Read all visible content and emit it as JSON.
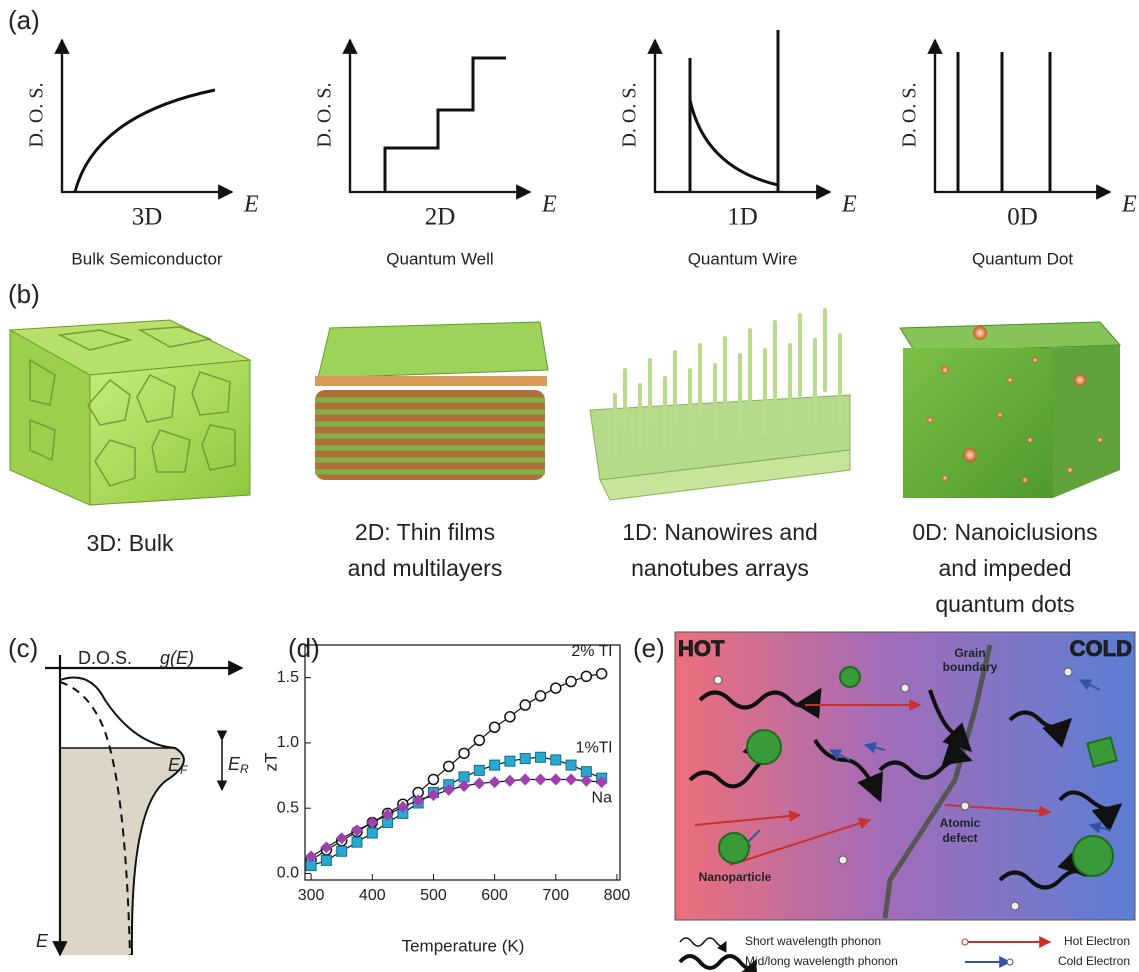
{
  "panel_a": {
    "label": "(a)",
    "plots": [
      {
        "y_label": "D. O. S.",
        "x_label": "E",
        "dimension": "3D",
        "caption": "Bulk Semiconductor"
      },
      {
        "y_label": "D. O. S.",
        "x_label": "E",
        "dimension": "2D",
        "caption": "Quantum Well"
      },
      {
        "y_label": "D. O. S.",
        "x_label": "E",
        "dimension": "1D",
        "caption": "Quantum Wire"
      },
      {
        "y_label": "D. O. S.",
        "x_label": "E",
        "dimension": "0D",
        "caption": "Quantum Dot"
      }
    ]
  },
  "panel_b": {
    "label": "(b)",
    "captions": [
      [
        "3D: Bulk"
      ],
      [
        "2D: Thin films",
        "and multilayers"
      ],
      [
        "1D: Nanowires and",
        "nanotubes arrays"
      ],
      [
        "0D: Nanoiclusions",
        "and impeded",
        "quantum dots"
      ]
    ]
  },
  "panel_c": {
    "label": "(c)",
    "axis_label": "D.O.S.",
    "function": "g(E)",
    "fermi": {
      "symbol": "E",
      "subscript": "F"
    },
    "range": {
      "symbol": "E",
      "subscript": "R"
    },
    "energy": "E"
  },
  "chart_data": {
    "type": "line",
    "label": "(d)",
    "x_label": "Temperature (K)",
    "y_label": "zT",
    "x": [
      300,
      325,
      350,
      375,
      400,
      425,
      450,
      475,
      500,
      525,
      550,
      575,
      600,
      625,
      650,
      675,
      700,
      725,
      750,
      775
    ],
    "series": [
      {
        "name": "2% Tl",
        "color": "#111111",
        "marker": "circle",
        "values": [
          0.1,
          0.18,
          0.25,
          0.32,
          0.39,
          0.46,
          0.53,
          0.62,
          0.72,
          0.82,
          0.92,
          1.02,
          1.12,
          1.2,
          1.29,
          1.36,
          1.42,
          1.47,
          1.51,
          1.53
        ]
      },
      {
        "name": "1%Tl",
        "color": "#2aa8cf",
        "marker": "square",
        "values": [
          0.06,
          0.1,
          0.17,
          0.24,
          0.31,
          0.39,
          0.46,
          0.54,
          0.62,
          0.68,
          0.74,
          0.79,
          0.83,
          0.86,
          0.88,
          0.89,
          0.87,
          0.83,
          0.78,
          0.73
        ]
      },
      {
        "name": "Na",
        "color": "#a040b0",
        "marker": "diamond",
        "values": [
          0.13,
          0.2,
          0.27,
          0.33,
          0.39,
          0.45,
          0.51,
          0.56,
          0.6,
          0.64,
          0.67,
          0.69,
          0.7,
          0.71,
          0.72,
          0.72,
          0.72,
          0.72,
          0.71,
          0.7
        ]
      }
    ],
    "xlim": [
      290,
      805
    ],
    "ylim": [
      -0.05,
      1.75
    ],
    "xticks": [
      300,
      400,
      500,
      600,
      700,
      800
    ],
    "yticks": [
      {
        "value": 0,
        "label": "0.0"
      },
      0.5,
      {
        "value": 1,
        "label": "1.0"
      },
      1.5
    ]
  },
  "panel_e": {
    "label": "(e)",
    "hot": "HOT",
    "cold": "COLD",
    "grain_boundary": [
      "Grain",
      "boundary"
    ],
    "atomic_defect": [
      "Atomic",
      "defect"
    ],
    "nanoparticle": "Nanoparticle",
    "legend": {
      "short_phonon": "Short wavelength phonon",
      "long_phonon": "Mid/long wavelength phonon",
      "hot_electron": "Hot Electron",
      "cold_electron": "Cold Electron"
    }
  }
}
